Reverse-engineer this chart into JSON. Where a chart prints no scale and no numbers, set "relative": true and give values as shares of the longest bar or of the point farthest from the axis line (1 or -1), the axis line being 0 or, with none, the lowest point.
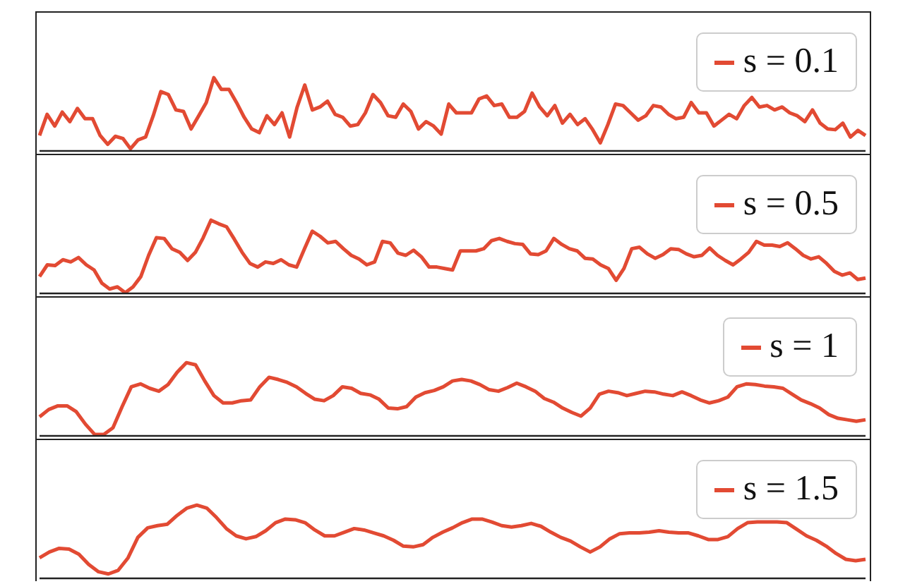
{
  "chart_data": [
    {
      "type": "line",
      "relative": true,
      "legend": "top right",
      "marker": "none",
      "line_style": "solid",
      "categories": [
        null,
        null,
        null,
        null,
        null,
        null,
        null,
        null,
        null,
        null,
        null,
        null,
        null,
        null,
        null,
        null,
        null,
        null,
        null,
        null,
        null,
        null,
        null,
        null,
        null,
        null,
        null,
        null,
        null,
        null,
        null,
        null,
        null,
        null,
        null,
        null,
        null,
        null,
        null,
        null,
        null,
        null,
        null,
        null,
        null,
        null,
        null,
        null,
        null,
        null,
        null,
        null,
        null,
        null,
        null,
        null,
        null,
        null,
        null,
        null,
        null,
        null,
        null,
        null,
        null,
        null,
        null,
        null,
        null,
        null,
        null,
        null,
        null,
        null,
        null,
        null,
        null,
        null,
        null,
        null,
        null,
        null,
        null,
        null,
        null,
        null,
        null,
        null,
        null,
        null,
        null,
        null,
        null,
        null,
        null,
        null,
        null,
        null,
        null,
        null,
        null,
        null,
        null,
        null,
        null,
        null,
        null,
        null,
        null,
        null
      ],
      "series": [
        {
          "name": "s = 0.1",
          "color": "#e24a33",
          "values": [
            0.21,
            0.5,
            0.34,
            0.53,
            0.4,
            0.58,
            0.44,
            0.44,
            0.21,
            0.09,
            0.2,
            0.17,
            0.03,
            0.15,
            0.19,
            0.48,
            0.81,
            0.77,
            0.56,
            0.54,
            0.3,
            0.48,
            0.66,
            1,
            0.84,
            0.84,
            0.66,
            0.46,
            0.3,
            0.25,
            0.48,
            0.36,
            0.52,
            0.19,
            0.6,
            0.9,
            0.56,
            0.6,
            0.68,
            0.5,
            0.46,
            0.34,
            0.36,
            0.52,
            0.77,
            0.66,
            0.48,
            0.46,
            0.64,
            0.54,
            0.3,
            0.4,
            0.34,
            0.23,
            0.64,
            0.52,
            0.52,
            0.52,
            0.71,
            0.75,
            0.62,
            0.64,
            0.46,
            0.46,
            0.54,
            0.79,
            0.6,
            0.48,
            0.62,
            0.38,
            0.5,
            0.36,
            0.44,
            0.29,
            0.11,
            0.36,
            0.64,
            0.62,
            0.52,
            0.42,
            0.48,
            0.62,
            0.6,
            0.5,
            0.44,
            0.46,
            0.66,
            0.52,
            0.52,
            0.34,
            0.42,
            0.5,
            0.44,
            0.62,
            0.73,
            0.6,
            0.62,
            0.56,
            0.6,
            0.52,
            0.48,
            0.4,
            0.56,
            0.38,
            0.3,
            0.29,
            0.38,
            0.19,
            0.28,
            0.21
          ]
        }
      ]
    },
    {
      "type": "line",
      "relative": true,
      "legend": "top right",
      "marker": "none",
      "line_style": "solid",
      "categories": [
        null,
        null,
        null,
        null,
        null,
        null,
        null,
        null,
        null,
        null,
        null,
        null,
        null,
        null,
        null,
        null,
        null,
        null,
        null,
        null,
        null,
        null,
        null,
        null,
        null,
        null,
        null,
        null,
        null,
        null,
        null,
        null,
        null,
        null,
        null,
        null,
        null,
        null,
        null,
        null,
        null,
        null,
        null,
        null,
        null,
        null,
        null,
        null,
        null,
        null,
        null,
        null,
        null,
        null,
        null,
        null,
        null,
        null,
        null,
        null,
        null,
        null,
        null,
        null,
        null,
        null,
        null,
        null,
        null,
        null,
        null,
        null,
        null,
        null,
        null,
        null,
        null,
        null,
        null,
        null,
        null,
        null,
        null,
        null,
        null,
        null,
        null,
        null,
        null,
        null,
        null,
        null,
        null,
        null,
        null,
        null,
        null,
        null,
        null,
        null,
        null,
        null,
        null,
        null,
        null,
        null,
        null
      ],
      "series": [
        {
          "name": "s = 0.5",
          "color": "#e24a33",
          "values": [
            0.23,
            0.39,
            0.38,
            0.46,
            0.43,
            0.49,
            0.39,
            0.32,
            0.14,
            0.06,
            0.09,
            0.01,
            0.09,
            0.23,
            0.52,
            0.76,
            0.75,
            0.61,
            0.56,
            0.45,
            0.56,
            0.76,
            1,
            0.95,
            0.91,
            0.74,
            0.56,
            0.41,
            0.36,
            0.43,
            0.41,
            0.46,
            0.39,
            0.36,
            0.61,
            0.85,
            0.78,
            0.69,
            0.71,
            0.61,
            0.52,
            0.47,
            0.39,
            0.43,
            0.71,
            0.69,
            0.55,
            0.52,
            0.59,
            0.5,
            0.36,
            0.36,
            0.34,
            0.32,
            0.58,
            0.58,
            0.58,
            0.61,
            0.72,
            0.75,
            0.71,
            0.68,
            0.67,
            0.54,
            0.53,
            0.58,
            0.75,
            0.67,
            0.61,
            0.58,
            0.48,
            0.47,
            0.39,
            0.34,
            0.18,
            0.34,
            0.61,
            0.63,
            0.54,
            0.48,
            0.53,
            0.61,
            0.6,
            0.54,
            0.5,
            0.52,
            0.62,
            0.52,
            0.45,
            0.39,
            0.47,
            0.56,
            0.71,
            0.66,
            0.66,
            0.64,
            0.69,
            0.61,
            0.52,
            0.47,
            0.5,
            0.41,
            0.3,
            0.25,
            0.28,
            0.19,
            0.21
          ]
        }
      ]
    },
    {
      "type": "line",
      "relative": true,
      "legend": "top right",
      "marker": "none",
      "line_style": "solid",
      "categories": [
        null,
        null,
        null,
        null,
        null,
        null,
        null,
        null,
        null,
        null,
        null,
        null,
        null,
        null,
        null,
        null,
        null,
        null,
        null,
        null,
        null,
        null,
        null,
        null,
        null,
        null,
        null,
        null,
        null,
        null,
        null,
        null,
        null,
        null,
        null,
        null,
        null,
        null,
        null,
        null,
        null,
        null,
        null,
        null,
        null,
        null,
        null,
        null,
        null,
        null,
        null,
        null,
        null,
        null,
        null,
        null,
        null,
        null,
        null,
        null,
        null,
        null,
        null,
        null,
        null,
        null,
        null,
        null,
        null,
        null,
        null,
        null,
        null,
        null,
        null,
        null,
        null,
        null,
        null,
        null,
        null,
        null,
        null,
        null,
        null,
        null,
        null,
        null,
        null,
        null,
        null
      ],
      "series": [
        {
          "name": "s = 1",
          "color": "#e24a33",
          "values": [
            0.26,
            0.36,
            0.41,
            0.41,
            0.33,
            0.16,
            0.02,
            0.02,
            0.11,
            0.4,
            0.67,
            0.71,
            0.65,
            0.61,
            0.7,
            0.87,
            1,
            0.97,
            0.75,
            0.55,
            0.45,
            0.45,
            0.48,
            0.49,
            0.67,
            0.8,
            0.77,
            0.73,
            0.67,
            0.58,
            0.5,
            0.48,
            0.55,
            0.67,
            0.65,
            0.58,
            0.56,
            0.5,
            0.38,
            0.37,
            0.4,
            0.53,
            0.59,
            0.62,
            0.67,
            0.75,
            0.77,
            0.75,
            0.7,
            0.63,
            0.61,
            0.66,
            0.72,
            0.67,
            0.61,
            0.51,
            0.46,
            0.38,
            0.32,
            0.27,
            0.38,
            0.57,
            0.61,
            0.59,
            0.55,
            0.58,
            0.61,
            0.6,
            0.57,
            0.55,
            0.6,
            0.55,
            0.49,
            0.45,
            0.48,
            0.53,
            0.67,
            0.71,
            0.7,
            0.68,
            0.67,
            0.65,
            0.57,
            0.49,
            0.44,
            0.38,
            0.29,
            0.24,
            0.22,
            0.2,
            0.22
          ]
        }
      ]
    },
    {
      "type": "line",
      "relative": true,
      "legend": "top right",
      "marker": "none",
      "line_style": "solid",
      "categories": [
        null,
        null,
        null,
        null,
        null,
        null,
        null,
        null,
        null,
        null,
        null,
        null,
        null,
        null,
        null,
        null,
        null,
        null,
        null,
        null,
        null,
        null,
        null,
        null,
        null,
        null,
        null,
        null,
        null,
        null,
        null,
        null,
        null,
        null,
        null,
        null,
        null,
        null,
        null,
        null,
        null,
        null,
        null,
        null,
        null,
        null,
        null,
        null,
        null,
        null,
        null,
        null,
        null,
        null,
        null,
        null,
        null,
        null,
        null,
        null,
        null,
        null,
        null,
        null,
        null,
        null,
        null,
        null,
        null,
        null,
        null,
        null,
        null,
        null,
        null,
        null,
        null,
        null,
        null,
        null,
        null,
        null,
        null,
        null,
        null
      ],
      "series": [
        {
          "name": "s = 1.5",
          "color": "#e24a33",
          "values": [
            0.28,
            0.36,
            0.41,
            0.4,
            0.33,
            0.19,
            0.09,
            0.06,
            0.11,
            0.28,
            0.56,
            0.69,
            0.72,
            0.74,
            0.86,
            0.96,
            1,
            0.96,
            0.83,
            0.68,
            0.58,
            0.54,
            0.57,
            0.65,
            0.76,
            0.81,
            0.8,
            0.76,
            0.66,
            0.58,
            0.58,
            0.63,
            0.68,
            0.66,
            0.62,
            0.58,
            0.52,
            0.44,
            0.43,
            0.46,
            0.56,
            0.63,
            0.69,
            0.76,
            0.81,
            0.81,
            0.77,
            0.72,
            0.7,
            0.72,
            0.75,
            0.71,
            0.63,
            0.56,
            0.51,
            0.43,
            0.36,
            0.43,
            0.54,
            0.61,
            0.62,
            0.62,
            0.63,
            0.65,
            0.63,
            0.62,
            0.62,
            0.58,
            0.53,
            0.53,
            0.57,
            0.68,
            0.76,
            0.77,
            0.77,
            0.77,
            0.76,
            0.67,
            0.58,
            0.52,
            0.44,
            0.34,
            0.26,
            0.24,
            0.26
          ]
        }
      ]
    }
  ]
}
